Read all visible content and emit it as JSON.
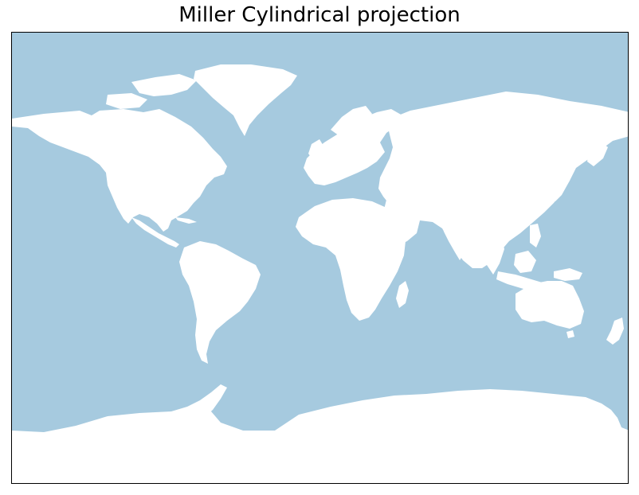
{
  "title": "Miller Cylindrical projection",
  "map": {
    "projection": "Miller Cylindrical",
    "ocean_color": "#a6cadf",
    "land_color": "#ffffff",
    "border_color": "#000000",
    "layers": [
      "ocean",
      "continents"
    ]
  }
}
